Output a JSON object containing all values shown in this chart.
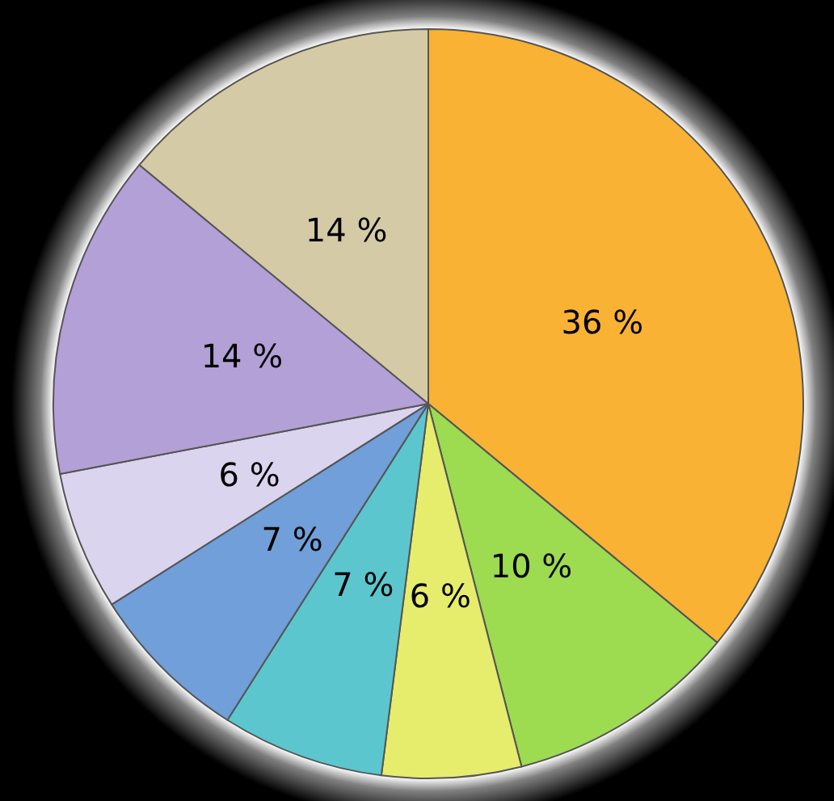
{
  "chart_data": {
    "type": "pie",
    "categories": [
      null,
      null,
      null,
      null,
      null,
      null,
      null,
      null
    ],
    "values": [
      36,
      10,
      6,
      7,
      7,
      6,
      14,
      14
    ],
    "colors": [
      "#f9b234",
      "#9ddb50",
      "#e6ec6c",
      "#5cc6ce",
      "#709fd9",
      "#dad4ee",
      "#b3a0d6",
      "#d4cba6"
    ],
    "value_labels": [
      "36 %",
      "10 %",
      "6 %",
      "7 %",
      "7 %",
      "6 %",
      "14 %",
      "14 %"
    ]
  }
}
